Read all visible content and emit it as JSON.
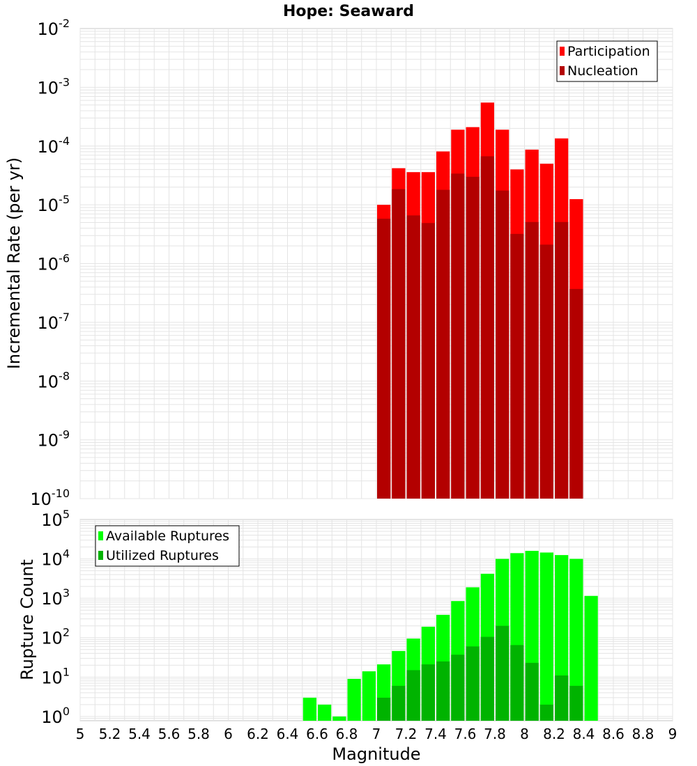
{
  "title": "Hope: Seaward",
  "chart_data": [
    {
      "type": "bar",
      "panel": "top",
      "ylabel": "Incremental Rate (per yr)",
      "yscale": "log",
      "ylim": [
        1e-10,
        0.01
      ],
      "ytick_exponents": [
        -10,
        -9,
        -8,
        -7,
        -6,
        -5,
        -4,
        -3,
        -2
      ],
      "xlim": [
        5,
        9
      ],
      "bin_width": 0.1,
      "x": [
        7.05,
        7.15,
        7.25,
        7.35,
        7.45,
        7.55,
        7.65,
        7.75,
        7.85,
        7.95,
        8.05,
        8.15,
        8.25,
        8.35
      ],
      "series": [
        {
          "name": "Participation",
          "color": "#ff0000",
          "values": [
            1e-05,
            4.2e-05,
            3.6e-05,
            3.6e-05,
            8.1e-05,
            0.00019,
            0.00021,
            0.00055,
            0.00019,
            4e-05,
            8.7e-05,
            5e-05,
            0.000135,
            1.25e-05
          ]
        },
        {
          "name": "Nucleation",
          "color": "#b30000",
          "values": [
            5.8e-06,
            1.85e-05,
            6.6e-06,
            4.9e-06,
            1.8e-05,
            3.4e-05,
            3e-05,
            6.7e-05,
            1.75e-05,
            3.2e-06,
            5.1e-06,
            2.1e-06,
            5.1e-06,
            3.7e-07
          ]
        }
      ],
      "legend": "top-right"
    },
    {
      "type": "bar",
      "panel": "bottom",
      "ylabel": "Rupture Count",
      "xlabel": "Magnitude",
      "yscale": "log",
      "ylim": [
        0.78,
        100000
      ],
      "ytick_exponents": [
        0,
        1,
        2,
        3,
        4,
        5
      ],
      "xlim": [
        5,
        9
      ],
      "xticks": [
        "5",
        "5.2",
        "5.4",
        "5.6",
        "5.8",
        "6",
        "6.2",
        "6.4",
        "6.6",
        "6.8",
        "7",
        "7.2",
        "7.4",
        "7.6",
        "7.8",
        "8",
        "8.2",
        "8.4",
        "8.6",
        "8.8",
        "9"
      ],
      "bin_width": 0.1,
      "series": [
        {
          "name": "Available Ruptures",
          "color": "#00ff00",
          "x": [
            6.55,
            6.65,
            6.75,
            6.85,
            6.95,
            7.05,
            7.15,
            7.25,
            7.35,
            7.45,
            7.55,
            7.65,
            7.75,
            7.85,
            7.95,
            8.05,
            8.15,
            8.25,
            8.35,
            8.45
          ],
          "values": [
            3,
            2,
            1,
            9,
            14,
            21,
            46,
            95,
            190,
            380,
            850,
            1900,
            4200,
            10000,
            14000,
            16000,
            14500,
            12500,
            10000,
            1150
          ]
        },
        {
          "name": "Utilized Ruptures",
          "color": "#00b300",
          "x": [
            7.05,
            7.15,
            7.25,
            7.35,
            7.45,
            7.55,
            7.65,
            7.75,
            7.85,
            7.95,
            8.05,
            8.15,
            8.25,
            8.35
          ],
          "values": [
            3,
            6,
            15,
            21,
            25,
            37,
            60,
            105,
            200,
            65,
            23,
            2,
            11,
            6
          ]
        }
      ],
      "legend": "top-left"
    }
  ]
}
